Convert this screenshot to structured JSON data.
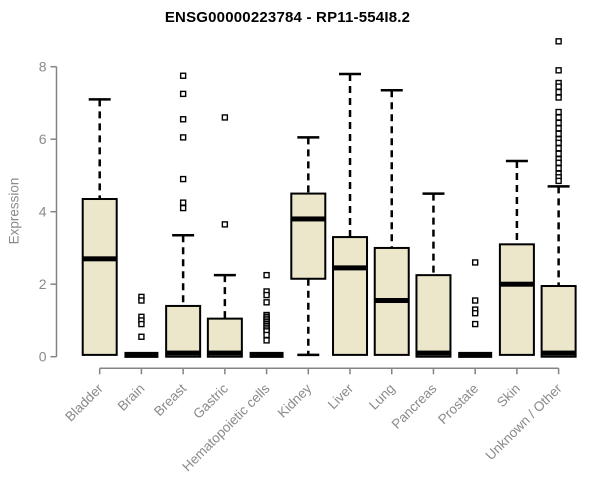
{
  "chart_data": {
    "type": "boxplot",
    "title": "ENSG00000223784 - RP11-554I8.2",
    "ylabel": "Expression",
    "xlabel": "",
    "ylim": [
      0,
      8.8
    ],
    "yticks": [
      0,
      2,
      4,
      6,
      8
    ],
    "grid": false,
    "legend": "none",
    "categories": [
      "Bladder",
      "Brain",
      "Breast",
      "Gastric",
      "Hematopoietic cells",
      "Kidney",
      "Liver",
      "Lung",
      "Pancreas",
      "Prostate",
      "Skin",
      "Unknown / Other"
    ],
    "series": [
      {
        "name": "Bladder",
        "whisker_low": 0.05,
        "q1": 0.05,
        "median": 2.7,
        "q3": 4.35,
        "whisker_high": 7.1,
        "outliers": []
      },
      {
        "name": "Brain",
        "whisker_low": 0,
        "q1": 0,
        "median": 0.05,
        "q3": 0.05,
        "whisker_high": 0.05,
        "outliers": [
          1.65,
          1.55,
          1.1,
          1.0,
          0.9,
          0.55
        ]
      },
      {
        "name": "Breast",
        "whisker_low": 0,
        "q1": 0,
        "median": 0.1,
        "q3": 1.4,
        "whisker_high": 3.35,
        "outliers": [
          7.75,
          7.25,
          6.55,
          6.05,
          4.9,
          4.25,
          4.1
        ]
      },
      {
        "name": "Gastric",
        "whisker_low": 0,
        "q1": 0,
        "median": 0.1,
        "q3": 1.05,
        "whisker_high": 2.25,
        "outliers": [
          6.6,
          3.65
        ]
      },
      {
        "name": "Hematopoietic cells",
        "whisker_low": 0,
        "q1": 0,
        "median": 0.05,
        "q3": 0.05,
        "whisker_high": 0.05,
        "outliers": [
          2.25,
          1.8,
          1.7,
          1.5,
          1.15,
          1.1,
          1.05,
          1.0,
          0.95,
          0.9,
          0.85,
          0.8,
          0.75,
          0.7,
          0.6,
          0.45
        ]
      },
      {
        "name": "Kidney",
        "whisker_low": 0.05,
        "q1": 2.15,
        "median": 3.8,
        "q3": 4.5,
        "whisker_high": 6.05,
        "outliers": []
      },
      {
        "name": "Liver",
        "whisker_low": 0.05,
        "q1": 0.05,
        "median": 2.45,
        "q3": 3.3,
        "whisker_high": 7.8,
        "outliers": []
      },
      {
        "name": "Lung",
        "whisker_low": 0.05,
        "q1": 0.05,
        "median": 1.55,
        "q3": 3.0,
        "whisker_high": 7.35,
        "outliers": []
      },
      {
        "name": "Pancreas",
        "whisker_low": 0,
        "q1": 0,
        "median": 0.1,
        "q3": 2.25,
        "whisker_high": 4.5,
        "outliers": []
      },
      {
        "name": "Prostate",
        "whisker_low": 0,
        "q1": 0,
        "median": 0.05,
        "q3": 0.05,
        "whisker_high": 0.05,
        "outliers": [
          2.6,
          1.55,
          1.3,
          1.2,
          0.9
        ]
      },
      {
        "name": "Skin",
        "whisker_low": 0.05,
        "q1": 0.05,
        "median": 2.0,
        "q3": 3.1,
        "whisker_high": 5.4,
        "outliers": []
      },
      {
        "name": "Unknown / Other",
        "whisker_low": 0,
        "q1": 0,
        "median": 0.1,
        "q3": 1.95,
        "whisker_high": 4.7,
        "outliers": [
          8.7,
          7.9,
          7.55,
          7.45,
          7.3,
          7.15,
          6.75,
          6.6,
          6.45,
          6.3,
          6.15,
          6.0,
          5.9,
          5.75,
          5.6,
          5.45,
          5.35,
          5.2,
          5.05,
          4.95,
          4.85
        ]
      }
    ],
    "colors": {
      "box_fill": "#ECE6CB",
      "box_border": "#000000",
      "median": "#000000",
      "outlier_fill": "#ffffff",
      "axis": "#848484",
      "tick_label": "#8a8a8a",
      "title": "#000000",
      "background": "#ffffff"
    }
  }
}
